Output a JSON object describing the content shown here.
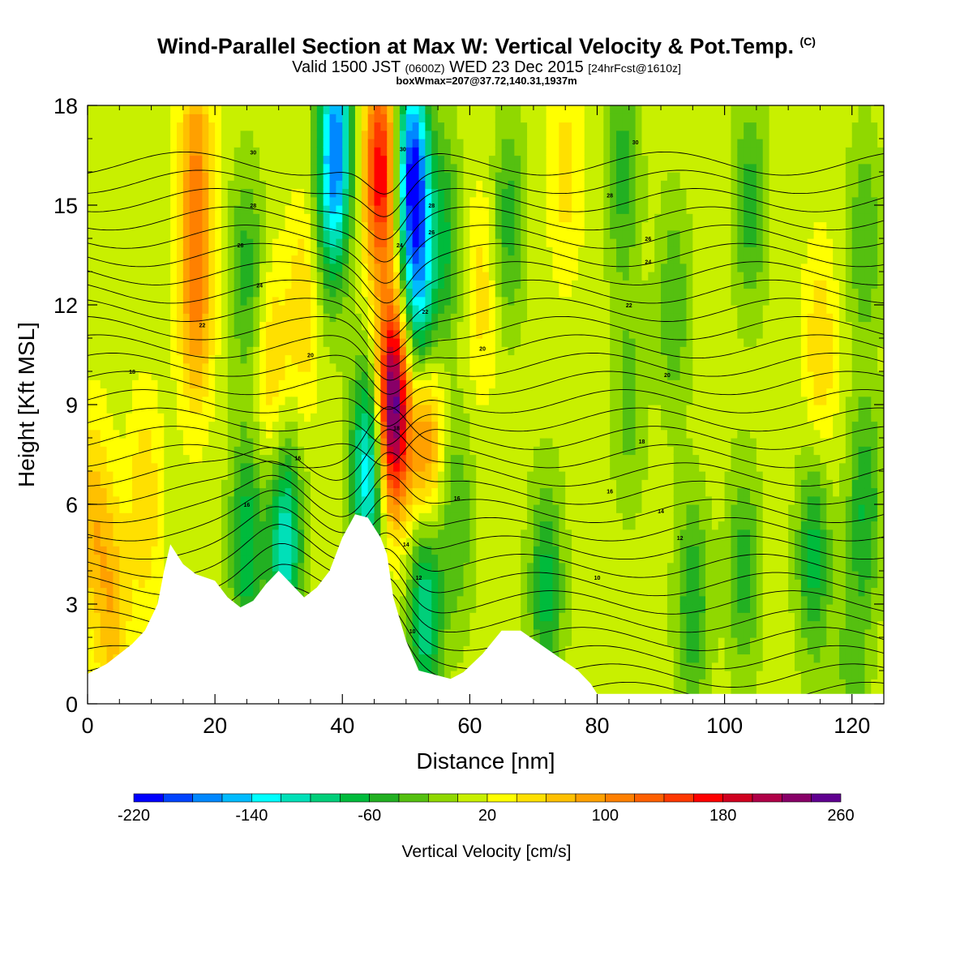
{
  "title": {
    "main": "Wind-Parallel Section at Max W: Vertical Velocity & Pot.Temp.",
    "copyright": "(C)",
    "valid_prefix": "Valid 1500 JST",
    "valid_utc": "(0600Z)",
    "valid_date": "WED 23 Dec 2015",
    "forecast": "[24hrFcst@1610z]",
    "boxinfo": "boxWmax=207@37.72,140.31,1937m"
  },
  "chart_data": {
    "type": "heatmap",
    "xlabel": "Distance [nm]",
    "ylabel": "Height [Kft MSL]",
    "xlim": [
      0,
      125
    ],
    "ylim": [
      0,
      18
    ],
    "xticks": [
      0,
      20,
      40,
      60,
      80,
      100,
      120
    ],
    "yticks": [
      0,
      3,
      6,
      9,
      12,
      15,
      18
    ],
    "colorbar": {
      "title": "Vertical Velocity [cm/s]",
      "range": [
        -220,
        260
      ],
      "tick_labels": [
        -220,
        -140,
        -60,
        20,
        100,
        180,
        260
      ],
      "colors": [
        "#0000ff",
        "#0044ff",
        "#0088ff",
        "#00bbff",
        "#00ffff",
        "#00e0b8",
        "#00cf7a",
        "#00bb3c",
        "#22b022",
        "#55c010",
        "#90d800",
        "#c8f000",
        "#ffff00",
        "#ffe000",
        "#ffc000",
        "#ffa000",
        "#ff8000",
        "#ff6000",
        "#ff3800",
        "#ff0000",
        "#d00020",
        "#b00048",
        "#880068",
        "#600090"
      ]
    },
    "terrain": [
      [
        0,
        0.9
      ],
      [
        3,
        1.2
      ],
      [
        5,
        1.5
      ],
      [
        7,
        1.8
      ],
      [
        9,
        2.2
      ],
      [
        11,
        3.0
      ],
      [
        12,
        4.0
      ],
      [
        13,
        4.8
      ],
      [
        15,
        4.2
      ],
      [
        17,
        3.9
      ],
      [
        20,
        3.7
      ],
      [
        22,
        3.2
      ],
      [
        24,
        2.9
      ],
      [
        26,
        3.1
      ],
      [
        28,
        3.6
      ],
      [
        30,
        4.0
      ],
      [
        32,
        3.6
      ],
      [
        34,
        3.2
      ],
      [
        36,
        3.5
      ],
      [
        38,
        4.0
      ],
      [
        40,
        5.0
      ],
      [
        42,
        5.7
      ],
      [
        44,
        5.6
      ],
      [
        46,
        5.0
      ],
      [
        47,
        4.5
      ],
      [
        48,
        3.2
      ],
      [
        50,
        1.9
      ],
      [
        52,
        1.0
      ],
      [
        55,
        0.85
      ],
      [
        57,
        0.75
      ],
      [
        59,
        0.95
      ],
      [
        62,
        1.5
      ],
      [
        65,
        2.2
      ],
      [
        68,
        2.2
      ],
      [
        71,
        1.8
      ],
      [
        74,
        1.4
      ],
      [
        77,
        1.0
      ],
      [
        79,
        0.6
      ],
      [
        80,
        0.3
      ],
      [
        90,
        0.3
      ],
      [
        110,
        0.3
      ],
      [
        125,
        0.3
      ]
    ],
    "velocity_field": [
      {
        "x": 1,
        "y": 5.5,
        "v": 60
      },
      {
        "x": 4,
        "y": 2.8,
        "v": 60
      },
      {
        "x": 9,
        "y": 6.0,
        "v": 50
      },
      {
        "x": 17,
        "y": 12.0,
        "v": 90
      },
      {
        "x": 17,
        "y": 16.5,
        "v": 80
      },
      {
        "x": 25,
        "y": 13.0,
        "v": -60
      },
      {
        "x": 25,
        "y": 4.8,
        "v": -90
      },
      {
        "x": 29,
        "y": 10.0,
        "v": 50
      },
      {
        "x": 31,
        "y": 4.8,
        "v": -130
      },
      {
        "x": 34,
        "y": 12.0,
        "v": 50
      },
      {
        "x": 38,
        "y": 14.5,
        "v": -60
      },
      {
        "x": 39,
        "y": 17.0,
        "v": -160
      },
      {
        "x": 44,
        "y": 7.0,
        "v": -150
      },
      {
        "x": 48,
        "y": 9.0,
        "v": 250
      },
      {
        "x": 46,
        "y": 16.0,
        "v": 170
      },
      {
        "x": 51,
        "y": 16.0,
        "v": -210
      },
      {
        "x": 52,
        "y": 12.0,
        "v": -130
      },
      {
        "x": 53,
        "y": 8.0,
        "v": 110
      },
      {
        "x": 53,
        "y": 3.0,
        "v": -120
      },
      {
        "x": 56,
        "y": 14.0,
        "v": -70
      },
      {
        "x": 58,
        "y": 5.5,
        "v": -50
      },
      {
        "x": 62,
        "y": 12.5,
        "v": 40
      },
      {
        "x": 66,
        "y": 14.5,
        "v": -60
      },
      {
        "x": 72,
        "y": 3.5,
        "v": -80
      },
      {
        "x": 75,
        "y": 16.0,
        "v": 40
      },
      {
        "x": 84,
        "y": 16.0,
        "v": -60
      },
      {
        "x": 85,
        "y": 9.0,
        "v": -40
      },
      {
        "x": 92,
        "y": 12.0,
        "v": -50
      },
      {
        "x": 95,
        "y": 3.0,
        "v": -70
      },
      {
        "x": 103,
        "y": 4.0,
        "v": -60
      },
      {
        "x": 104,
        "y": 15.0,
        "v": -60
      },
      {
        "x": 115,
        "y": 10.5,
        "v": 50
      },
      {
        "x": 114,
        "y": 4.5,
        "v": -80
      },
      {
        "x": 122,
        "y": 14.0,
        "v": -50
      },
      {
        "x": 122,
        "y": 6.0,
        "v": -70
      },
      {
        "x": 120,
        "y": 1.0,
        "v": -40
      }
    ],
    "isentrope_labels": [
      {
        "x": 26,
        "y": 16.6,
        "text": "30"
      },
      {
        "x": 26,
        "y": 15.0,
        "text": "28"
      },
      {
        "x": 24,
        "y": 13.8,
        "text": "26"
      },
      {
        "x": 27,
        "y": 12.6,
        "text": "24"
      },
      {
        "x": 18,
        "y": 11.4,
        "text": "22"
      },
      {
        "x": 35,
        "y": 10.5,
        "text": "20"
      },
      {
        "x": 7,
        "y": 10.0,
        "text": "18"
      },
      {
        "x": 33,
        "y": 7.4,
        "text": "16"
      },
      {
        "x": 25,
        "y": 6.0,
        "text": "16"
      },
      {
        "x": 49.5,
        "y": 16.7,
        "text": "30"
      },
      {
        "x": 54,
        "y": 15.0,
        "text": "28"
      },
      {
        "x": 54,
        "y": 14.2,
        "text": "26"
      },
      {
        "x": 49,
        "y": 13.8,
        "text": "24"
      },
      {
        "x": 53,
        "y": 11.8,
        "text": "22"
      },
      {
        "x": 48.5,
        "y": 8.3,
        "text": "18"
      },
      {
        "x": 62,
        "y": 10.7,
        "text": "20"
      },
      {
        "x": 58,
        "y": 6.2,
        "text": "16"
      },
      {
        "x": 50,
        "y": 4.8,
        "text": "14"
      },
      {
        "x": 52,
        "y": 3.8,
        "text": "12"
      },
      {
        "x": 51,
        "y": 2.2,
        "text": "10"
      },
      {
        "x": 86,
        "y": 16.9,
        "text": "30"
      },
      {
        "x": 82,
        "y": 15.3,
        "text": "28"
      },
      {
        "x": 88,
        "y": 14.0,
        "text": "26"
      },
      {
        "x": 88,
        "y": 13.3,
        "text": "24"
      },
      {
        "x": 85,
        "y": 12.0,
        "text": "22"
      },
      {
        "x": 91,
        "y": 9.9,
        "text": "20"
      },
      {
        "x": 87,
        "y": 7.9,
        "text": "18"
      },
      {
        "x": 82,
        "y": 6.4,
        "text": "16"
      },
      {
        "x": 90,
        "y": 5.8,
        "text": "14"
      },
      {
        "x": 93,
        "y": 5.0,
        "text": "12"
      },
      {
        "x": 80,
        "y": 3.8,
        "text": "10"
      }
    ]
  }
}
